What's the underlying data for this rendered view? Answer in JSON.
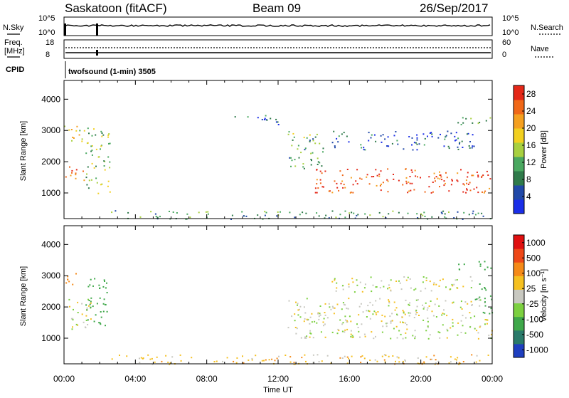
{
  "header": {
    "station": "Saskatoon (fitACF)",
    "beam": "Beam 09",
    "date": "26/Sep/2017"
  },
  "strips": {
    "nsky_label": "N.Sky",
    "nsky_top": "10^5",
    "nsky_bottom": "10^0",
    "nsearch_label": "N.Search",
    "nsearch_top": "10^5",
    "nsearch_bottom": "10^0",
    "freq_label": "Freq.",
    "freq_unit": "[MHz]",
    "freq_top": "18",
    "freq_bottom": "8",
    "nave_label": "Nave",
    "nave_top": "60",
    "nave_bottom": "0",
    "cpid_label": "CPID",
    "cpid_value": "twofsound (1-min) 3505"
  },
  "panels": {
    "ylabel": "Slant Range [km]",
    "yticks": [
      "1000",
      "2000",
      "3000",
      "4000"
    ],
    "xticks": [
      "00:00",
      "04:00",
      "08:00",
      "12:00",
      "16:00",
      "20:00",
      "00:00"
    ],
    "xlabel": "Time UT"
  },
  "colorbars": {
    "power": {
      "label": "Power [dB]",
      "ticks": [
        "4",
        "8",
        "12",
        "16",
        "20",
        "24",
        "28"
      ],
      "colors": [
        "#1a2ee8",
        "#2149a8",
        "#2f7a4a",
        "#4aa860",
        "#a8d040",
        "#f2d020",
        "#f5a020",
        "#f06818",
        "#e42818"
      ]
    },
    "velocity": {
      "label": "Velocity [m s⁻¹]",
      "ticks": [
        "1000",
        "500",
        "100",
        "25",
        "-25",
        "-100",
        "-500",
        "-1000"
      ],
      "colors": [
        "#1f3fc0",
        "#2a7a6a",
        "#3fa84a",
        "#7cd040",
        "#c8c8c0",
        "#f5c020",
        "#f58a18",
        "#ee4818",
        "#e01010"
      ]
    }
  },
  "chart_data": [
    {
      "type": "heatmap",
      "title": "Power",
      "xlabel": "Time UT",
      "ylabel": "Slant Range [km]",
      "xlim": [
        "00:00",
        "24:00"
      ],
      "ylim": [
        180,
        4600
      ],
      "color_scale": {
        "label": "Power [dB]",
        "range": [
          0,
          30
        ]
      },
      "features": [
        {
          "t_start": 0.0,
          "t_end": 1.2,
          "range_start": 2600,
          "range_end": 3200,
          "value": 18
        },
        {
          "t_start": 0.0,
          "t_end": 1.2,
          "range_start": 1400,
          "range_end": 1900,
          "value": 24
        },
        {
          "t_start": 1.2,
          "t_end": 2.6,
          "range_start": 1000,
          "range_end": 3100,
          "value": 14
        },
        {
          "t_start": 2.6,
          "t_end": 24.0,
          "range_start": 180,
          "range_end": 450,
          "value": 10
        },
        {
          "t_start": 9.5,
          "t_end": 12.0,
          "range_start": 3200,
          "range_end": 3500,
          "value": 6
        },
        {
          "t_start": 12.5,
          "t_end": 14.5,
          "range_start": 1800,
          "range_end": 3000,
          "value": 12
        },
        {
          "t_start": 14.0,
          "t_end": 24.0,
          "range_start": 1000,
          "range_end": 1800,
          "value": 27
        },
        {
          "t_start": 15.0,
          "t_end": 23.0,
          "range_start": 2400,
          "range_end": 3000,
          "value": 5
        },
        {
          "t_start": 22.0,
          "t_end": 24.0,
          "range_start": 3200,
          "range_end": 3500,
          "value": 12
        }
      ]
    },
    {
      "type": "heatmap",
      "title": "Velocity",
      "xlabel": "Time UT",
      "ylabel": "Slant Range [km]",
      "xlim": [
        "00:00",
        "24:00"
      ],
      "ylim": [
        180,
        4600
      ],
      "color_scale": {
        "label": "Velocity [m s⁻¹]",
        "range": [
          -1000,
          1000
        ]
      },
      "features": [
        {
          "t_start": 0.0,
          "t_end": 0.8,
          "range_start": 2700,
          "range_end": 3200,
          "value": -300
        },
        {
          "t_start": 0.0,
          "t_end": 1.5,
          "range_start": 1300,
          "range_end": 2300,
          "value": 0
        },
        {
          "t_start": 1.2,
          "t_end": 2.4,
          "range_start": 1200,
          "range_end": 3000,
          "value": 200
        },
        {
          "t_start": 2.6,
          "t_end": 24.0,
          "range_start": 180,
          "range_end": 500,
          "value": -60
        },
        {
          "t_start": 12.5,
          "t_end": 24.0,
          "range_start": 1000,
          "range_end": 2300,
          "value": 0
        },
        {
          "t_start": 15.0,
          "t_end": 23.0,
          "range_start": 2500,
          "range_end": 3000,
          "value": 0
        },
        {
          "t_start": 22.0,
          "t_end": 24.0,
          "range_start": 3200,
          "range_end": 3500,
          "value": 150
        },
        {
          "t_start": 23.0,
          "t_end": 24.0,
          "range_start": 1800,
          "range_end": 2800,
          "value": 300
        }
      ]
    }
  ]
}
